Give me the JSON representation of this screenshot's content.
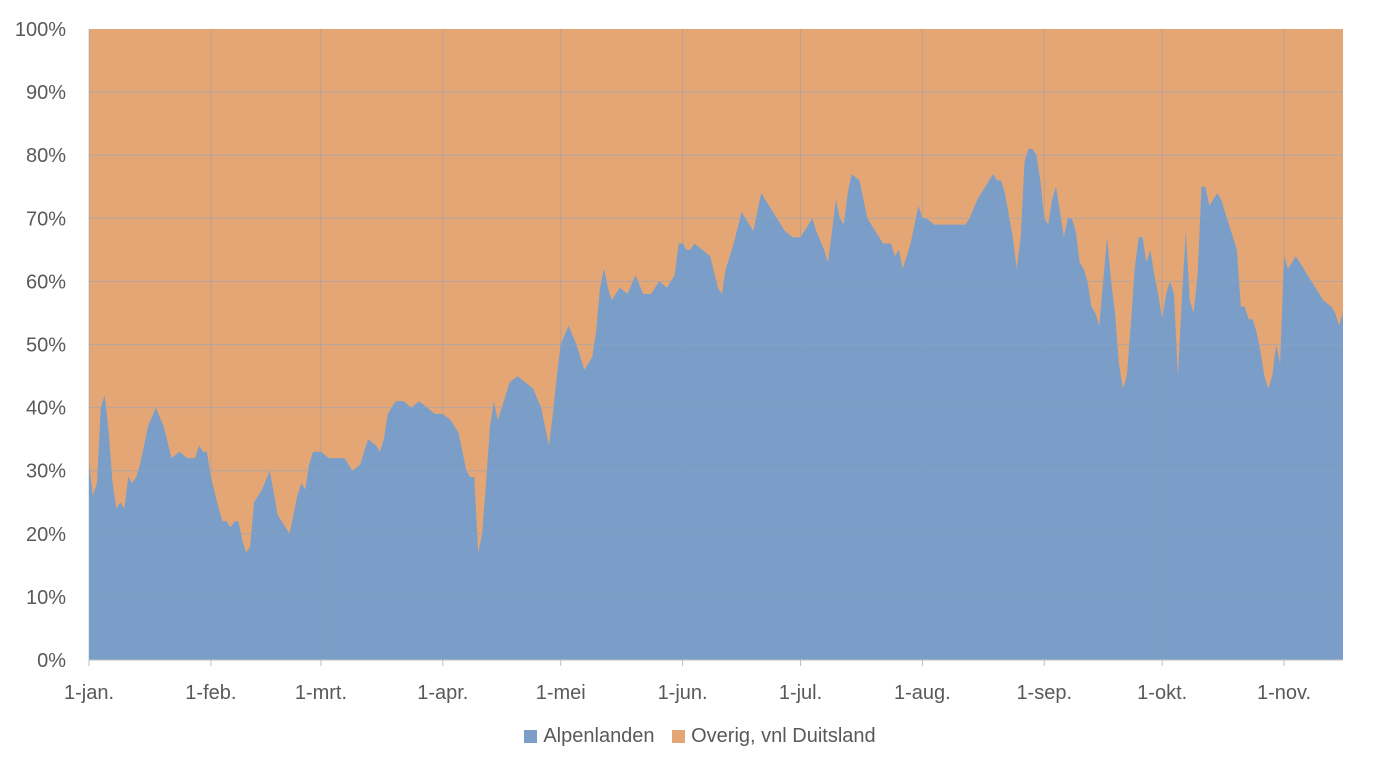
{
  "chart_data": {
    "type": "area",
    "stacked": true,
    "normalized": true,
    "title": "",
    "xlabel": "",
    "ylabel": "",
    "ylim": [
      0,
      1
    ],
    "y_ticks": [
      0,
      0.1,
      0.2,
      0.3,
      0.4,
      0.5,
      0.6,
      0.7,
      0.8,
      0.9,
      1.0
    ],
    "y_tick_labels": [
      "0%",
      "10%",
      "20%",
      "30%",
      "40%",
      "50%",
      "60%",
      "70%",
      "80%",
      "90%",
      "100%"
    ],
    "x_ticks": [
      "1-jan.",
      "1-feb.",
      "1-mrt.",
      "1-apr.",
      "1-mei",
      "1-jun.",
      "1-jul.",
      "1-aug.",
      "1-sep.",
      "1-okt.",
      "1-nov."
    ],
    "x_tick_days": [
      1,
      32,
      60,
      91,
      121,
      152,
      182,
      213,
      244,
      274,
      305
    ],
    "x_range_days": [
      1,
      320
    ],
    "grid": true,
    "legend_position": "bottom",
    "series": [
      {
        "name": "Alpenlanden",
        "color": "#7a9ec8",
        "points": [
          [
            1,
            0.31
          ],
          [
            2,
            0.26
          ],
          [
            3,
            0.28
          ],
          [
            4,
            0.4
          ],
          [
            5,
            0.42
          ],
          [
            6,
            0.36
          ],
          [
            7,
            0.28
          ],
          [
            8,
            0.24
          ],
          [
            9,
            0.25
          ],
          [
            10,
            0.24
          ],
          [
            11,
            0.29
          ],
          [
            12,
            0.28
          ],
          [
            13,
            0.29
          ],
          [
            14,
            0.31
          ],
          [
            16,
            0.37
          ],
          [
            18,
            0.4
          ],
          [
            20,
            0.37
          ],
          [
            22,
            0.32
          ],
          [
            24,
            0.33
          ],
          [
            26,
            0.32
          ],
          [
            27,
            0.32
          ],
          [
            28,
            0.32
          ],
          [
            29,
            0.34
          ],
          [
            30,
            0.33
          ],
          [
            31,
            0.33
          ],
          [
            32,
            0.29
          ],
          [
            34,
            0.24
          ],
          [
            35,
            0.22
          ],
          [
            36,
            0.22
          ],
          [
            37,
            0.21
          ],
          [
            38,
            0.22
          ],
          [
            39,
            0.22
          ],
          [
            40,
            0.19
          ],
          [
            41,
            0.17
          ],
          [
            42,
            0.18
          ],
          [
            43,
            0.25
          ],
          [
            45,
            0.27
          ],
          [
            47,
            0.3
          ],
          [
            49,
            0.23
          ],
          [
            50,
            0.22
          ],
          [
            51,
            0.21
          ],
          [
            52,
            0.2
          ],
          [
            53,
            0.23
          ],
          [
            54,
            0.26
          ],
          [
            55,
            0.28
          ],
          [
            56,
            0.27
          ],
          [
            57,
            0.31
          ],
          [
            58,
            0.33
          ],
          [
            59,
            0.33
          ],
          [
            60,
            0.33
          ],
          [
            62,
            0.32
          ],
          [
            64,
            0.32
          ],
          [
            66,
            0.32
          ],
          [
            68,
            0.3
          ],
          [
            70,
            0.31
          ],
          [
            72,
            0.35
          ],
          [
            74,
            0.34
          ],
          [
            75,
            0.33
          ],
          [
            76,
            0.35
          ],
          [
            77,
            0.39
          ],
          [
            79,
            0.41
          ],
          [
            81,
            0.41
          ],
          [
            83,
            0.4
          ],
          [
            85,
            0.41
          ],
          [
            87,
            0.4
          ],
          [
            89,
            0.39
          ],
          [
            91,
            0.39
          ],
          [
            93,
            0.38
          ],
          [
            95,
            0.36
          ],
          [
            97,
            0.3
          ],
          [
            98,
            0.29
          ],
          [
            99,
            0.29
          ],
          [
            100,
            0.17
          ],
          [
            101,
            0.2
          ],
          [
            102,
            0.28
          ],
          [
            103,
            0.37
          ],
          [
            104,
            0.41
          ],
          [
            105,
            0.38
          ],
          [
            106,
            0.4
          ],
          [
            108,
            0.44
          ],
          [
            110,
            0.45
          ],
          [
            112,
            0.44
          ],
          [
            114,
            0.43
          ],
          [
            116,
            0.4
          ],
          [
            117,
            0.37
          ],
          [
            118,
            0.34
          ],
          [
            119,
            0.39
          ],
          [
            120,
            0.45
          ],
          [
            121,
            0.5
          ],
          [
            123,
            0.53
          ],
          [
            125,
            0.5
          ],
          [
            127,
            0.46
          ],
          [
            129,
            0.48
          ],
          [
            130,
            0.52
          ],
          [
            131,
            0.59
          ],
          [
            132,
            0.62
          ],
          [
            133,
            0.59
          ],
          [
            134,
            0.57
          ],
          [
            136,
            0.59
          ],
          [
            138,
            0.58
          ],
          [
            140,
            0.61
          ],
          [
            142,
            0.58
          ],
          [
            144,
            0.58
          ],
          [
            146,
            0.6
          ],
          [
            148,
            0.59
          ],
          [
            150,
            0.61
          ],
          [
            151,
            0.66
          ],
          [
            152,
            0.66
          ],
          [
            153,
            0.65
          ],
          [
            154,
            0.65
          ],
          [
            155,
            0.66
          ],
          [
            157,
            0.65
          ],
          [
            159,
            0.64
          ],
          [
            161,
            0.59
          ],
          [
            162,
            0.58
          ],
          [
            163,
            0.62
          ],
          [
            164,
            0.64
          ],
          [
            165,
            0.66
          ],
          [
            167,
            0.71
          ],
          [
            169,
            0.69
          ],
          [
            170,
            0.68
          ],
          [
            171,
            0.71
          ],
          [
            172,
            0.74
          ],
          [
            173,
            0.73
          ],
          [
            175,
            0.71
          ],
          [
            177,
            0.69
          ],
          [
            178,
            0.68
          ],
          [
            180,
            0.67
          ],
          [
            182,
            0.67
          ],
          [
            184,
            0.69
          ],
          [
            185,
            0.7
          ],
          [
            186,
            0.68
          ],
          [
            188,
            0.65
          ],
          [
            189,
            0.63
          ],
          [
            190,
            0.68
          ],
          [
            191,
            0.73
          ],
          [
            192,
            0.7
          ],
          [
            193,
            0.69
          ],
          [
            194,
            0.74
          ],
          [
            195,
            0.77
          ],
          [
            197,
            0.76
          ],
          [
            199,
            0.7
          ],
          [
            201,
            0.68
          ],
          [
            203,
            0.66
          ],
          [
            205,
            0.66
          ],
          [
            206,
            0.64
          ],
          [
            207,
            0.65
          ],
          [
            208,
            0.62
          ],
          [
            209,
            0.64
          ],
          [
            210,
            0.66
          ],
          [
            212,
            0.72
          ],
          [
            213,
            0.7
          ],
          [
            214,
            0.7
          ],
          [
            216,
            0.69
          ],
          [
            218,
            0.69
          ],
          [
            219,
            0.69
          ],
          [
            220,
            0.69
          ],
          [
            222,
            0.69
          ],
          [
            224,
            0.69
          ],
          [
            225,
            0.7
          ],
          [
            227,
            0.73
          ],
          [
            229,
            0.75
          ],
          [
            231,
            0.77
          ],
          [
            232,
            0.76
          ],
          [
            233,
            0.76
          ],
          [
            234,
            0.74
          ],
          [
            236,
            0.67
          ],
          [
            237,
            0.62
          ],
          [
            238,
            0.67
          ],
          [
            239,
            0.79
          ],
          [
            240,
            0.81
          ],
          [
            241,
            0.81
          ],
          [
            242,
            0.8
          ],
          [
            243,
            0.76
          ],
          [
            244,
            0.7
          ],
          [
            245,
            0.69
          ],
          [
            246,
            0.73
          ],
          [
            247,
            0.75
          ],
          [
            248,
            0.71
          ],
          [
            249,
            0.67
          ],
          [
            250,
            0.7
          ],
          [
            251,
            0.7
          ],
          [
            252,
            0.68
          ],
          [
            253,
            0.63
          ],
          [
            254,
            0.62
          ],
          [
            255,
            0.6
          ],
          [
            256,
            0.56
          ],
          [
            257,
            0.55
          ],
          [
            258,
            0.53
          ],
          [
            259,
            0.6
          ],
          [
            260,
            0.67
          ],
          [
            261,
            0.6
          ],
          [
            262,
            0.55
          ],
          [
            263,
            0.47
          ],
          [
            264,
            0.43
          ],
          [
            265,
            0.45
          ],
          [
            266,
            0.53
          ],
          [
            267,
            0.62
          ],
          [
            268,
            0.67
          ],
          [
            269,
            0.67
          ],
          [
            270,
            0.63
          ],
          [
            271,
            0.65
          ],
          [
            272,
            0.61
          ],
          [
            273,
            0.58
          ],
          [
            274,
            0.54
          ],
          [
            275,
            0.58
          ],
          [
            276,
            0.6
          ],
          [
            277,
            0.58
          ],
          [
            278,
            0.45
          ],
          [
            279,
            0.57
          ],
          [
            280,
            0.68
          ],
          [
            281,
            0.57
          ],
          [
            282,
            0.55
          ],
          [
            283,
            0.61
          ],
          [
            284,
            0.75
          ],
          [
            285,
            0.75
          ],
          [
            286,
            0.72
          ],
          [
            287,
            0.73
          ],
          [
            288,
            0.74
          ],
          [
            289,
            0.73
          ],
          [
            291,
            0.69
          ],
          [
            293,
            0.65
          ],
          [
            294,
            0.56
          ],
          [
            295,
            0.56
          ],
          [
            296,
            0.54
          ],
          [
            297,
            0.54
          ],
          [
            298,
            0.52
          ],
          [
            299,
            0.49
          ],
          [
            300,
            0.45
          ],
          [
            301,
            0.43
          ],
          [
            302,
            0.45
          ],
          [
            303,
            0.5
          ],
          [
            304,
            0.47
          ],
          [
            305,
            0.64
          ],
          [
            306,
            0.62
          ],
          [
            307,
            0.63
          ],
          [
            308,
            0.64
          ],
          [
            309,
            0.63
          ],
          [
            311,
            0.61
          ],
          [
            313,
            0.59
          ],
          [
            315,
            0.57
          ],
          [
            317,
            0.56
          ],
          [
            318,
            0.55
          ],
          [
            319,
            0.53
          ],
          [
            320,
            0.55
          ]
        ]
      },
      {
        "name": "Overig, vnl Duitsland",
        "color": "#e5a675",
        "note_values_are_complement": true
      }
    ]
  }
}
